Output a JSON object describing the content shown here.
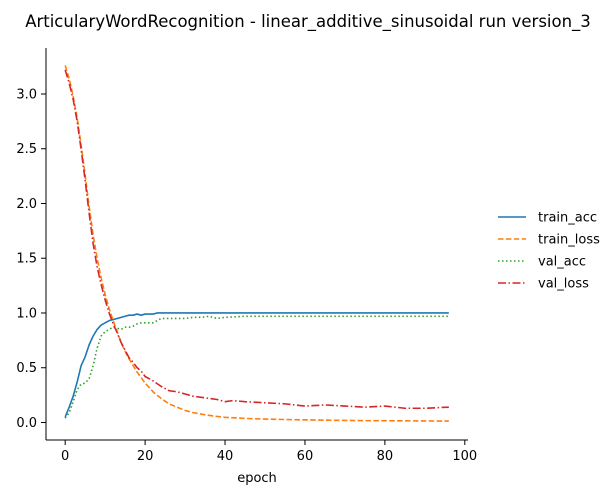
{
  "chart_data": {
    "type": "line",
    "title": "ArticularyWordRecognition - linear_additive_sinusoidal run version_3",
    "xlabel": "epoch",
    "ylabel": "",
    "xlim": [
      -4.8,
      100.8
    ],
    "ylim": [
      -0.16,
      3.42
    ],
    "x_ticks": [
      0,
      20,
      40,
      60,
      80,
      100
    ],
    "y_ticks": [
      0.0,
      0.5,
      1.0,
      1.5,
      2.0,
      2.5,
      3.0
    ],
    "x_tick_labels": [
      "0",
      "20",
      "40",
      "60",
      "80",
      "100"
    ],
    "y_tick_labels": [
      "0.0",
      "0.5",
      "1.0",
      "1.5",
      "2.0",
      "2.5",
      "3.0"
    ],
    "grid": false,
    "legend_placement": "center-right outside",
    "series": [
      {
        "name": "train_acc",
        "color": "#1f77b4",
        "dash": "solid",
        "x": [
          0,
          1,
          2,
          3,
          4,
          5,
          6,
          7,
          8,
          9,
          10,
          11,
          12,
          13,
          14,
          15,
          16,
          17,
          18,
          19,
          20,
          21,
          22,
          23,
          24,
          25,
          30,
          35,
          40,
          45,
          50,
          55,
          60,
          65,
          70,
          75,
          80,
          85,
          90,
          95,
          96
        ],
        "y": [
          0.05,
          0.14,
          0.24,
          0.37,
          0.52,
          0.6,
          0.71,
          0.79,
          0.85,
          0.89,
          0.91,
          0.93,
          0.94,
          0.95,
          0.96,
          0.97,
          0.98,
          0.98,
          0.99,
          0.98,
          0.99,
          0.99,
          0.99,
          1.0,
          1.0,
          1.0,
          1.0,
          1.0,
          1.0,
          1.0,
          1.0,
          1.0,
          1.0,
          1.0,
          1.0,
          1.0,
          1.0,
          1.0,
          1.0,
          1.0,
          1.0
        ]
      },
      {
        "name": "train_loss",
        "color": "#ff7f0e",
        "dash": "dashed",
        "x": [
          0,
          1,
          2,
          3,
          4,
          5,
          6,
          7,
          8,
          9,
          10,
          11,
          12,
          13,
          14,
          15,
          16,
          17,
          18,
          19,
          20,
          22,
          24,
          26,
          28,
          30,
          32,
          35,
          38,
          40,
          45,
          50,
          55,
          60,
          65,
          70,
          75,
          80,
          85,
          90,
          95,
          96
        ],
        "y": [
          3.26,
          3.14,
          2.98,
          2.78,
          2.53,
          2.26,
          1.97,
          1.71,
          1.5,
          1.32,
          1.17,
          1.04,
          0.93,
          0.83,
          0.73,
          0.65,
          0.58,
          0.52,
          0.46,
          0.41,
          0.36,
          0.28,
          0.22,
          0.17,
          0.14,
          0.11,
          0.09,
          0.07,
          0.055,
          0.047,
          0.037,
          0.031,
          0.027,
          0.024,
          0.021,
          0.019,
          0.017,
          0.016,
          0.015,
          0.014,
          0.013,
          0.013
        ]
      },
      {
        "name": "val_acc",
        "color": "#2ca02c",
        "dash": "dotted",
        "x": [
          0,
          1,
          2,
          3,
          4,
          5,
          6,
          7,
          8,
          9,
          10,
          11,
          12,
          13,
          14,
          15,
          16,
          17,
          18,
          19,
          20,
          22,
          24,
          26,
          28,
          30,
          32,
          34,
          36,
          38,
          40,
          45,
          50,
          60,
          70,
          80,
          90,
          96
        ],
        "y": [
          0.04,
          0.09,
          0.19,
          0.3,
          0.35,
          0.36,
          0.4,
          0.52,
          0.68,
          0.79,
          0.83,
          0.85,
          0.87,
          0.86,
          0.85,
          0.87,
          0.87,
          0.88,
          0.9,
          0.91,
          0.91,
          0.91,
          0.95,
          0.95,
          0.95,
          0.95,
          0.96,
          0.96,
          0.97,
          0.95,
          0.96,
          0.97,
          0.97,
          0.97,
          0.97,
          0.97,
          0.97,
          0.97
        ]
      },
      {
        "name": "val_loss",
        "color": "#d62728",
        "dash": "dashdot",
        "x": [
          0,
          1,
          2,
          3,
          4,
          5,
          6,
          7,
          8,
          9,
          10,
          11,
          12,
          13,
          14,
          15,
          16,
          17,
          18,
          19,
          20,
          22,
          24,
          26,
          28,
          30,
          32,
          34,
          36,
          38,
          40,
          42,
          45,
          50,
          55,
          60,
          65,
          70,
          75,
          80,
          85,
          90,
          96
        ],
        "y": [
          3.22,
          3.1,
          2.95,
          2.75,
          2.49,
          2.21,
          1.91,
          1.63,
          1.42,
          1.26,
          1.12,
          1.0,
          0.9,
          0.82,
          0.73,
          0.66,
          0.59,
          0.55,
          0.5,
          0.47,
          0.42,
          0.38,
          0.33,
          0.29,
          0.28,
          0.26,
          0.24,
          0.23,
          0.22,
          0.21,
          0.19,
          0.2,
          0.19,
          0.18,
          0.17,
          0.15,
          0.16,
          0.15,
          0.14,
          0.15,
          0.13,
          0.13,
          0.14
        ]
      }
    ]
  }
}
